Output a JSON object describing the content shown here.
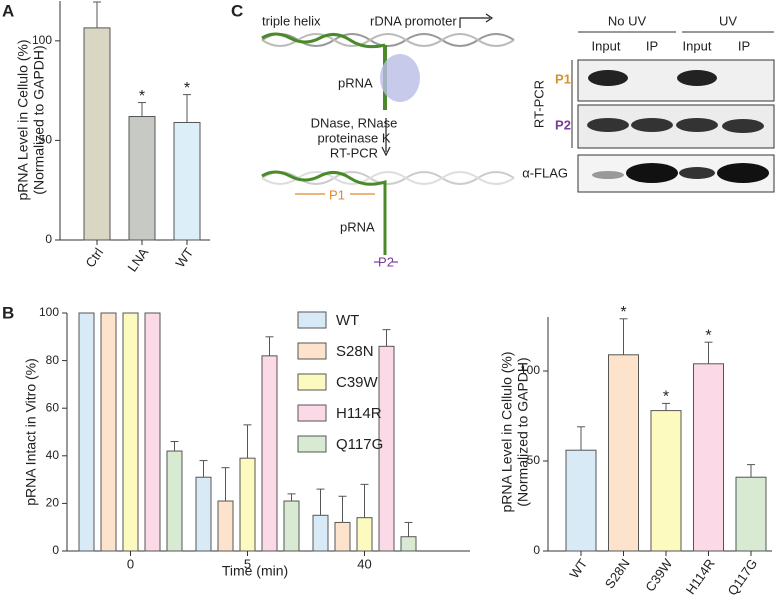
{
  "panel_labels": [
    "A",
    "B",
    "C"
  ],
  "chart_data": [
    {
      "type": "bar",
      "y_label": [
        "pRNA Level in Cellulo (%)",
        "(Normalized to GAPDH)"
      ],
      "categories": [
        "Ctrl",
        "LNA",
        "WT"
      ],
      "values": [
        106.5,
        62,
        59
      ],
      "errors": [
        13,
        7,
        14
      ],
      "annotations": [
        null,
        "*",
        "*"
      ],
      "colors": [
        "#d9d6c4",
        "#c7c9c5",
        "#dceef8"
      ],
      "ylim": [
        0,
        120
      ],
      "yticks": [
        0,
        50,
        100
      ]
    },
    {
      "type": "grouped-bar",
      "y_label": [
        "pRNA Intact in Vitro (%)"
      ],
      "x_label": "Time (min)",
      "categories": [
        "0",
        "5",
        "40"
      ],
      "series": [
        {
          "name": "WT",
          "color": "#d7eaf6",
          "values": [
            100,
            31,
            15
          ],
          "errors": [
            null,
            7,
            11
          ]
        },
        {
          "name": "S28N",
          "color": "#fde3cc",
          "values": [
            100,
            21,
            12
          ],
          "errors": [
            null,
            14,
            11
          ]
        },
        {
          "name": "C39W",
          "color": "#fdfac0",
          "values": [
            100,
            39,
            14
          ],
          "errors": [
            null,
            14,
            14
          ]
        },
        {
          "name": "H114R",
          "color": "#fbd9e6",
          "values": [
            100,
            82,
            86
          ],
          "errors": [
            null,
            8,
            7
          ]
        },
        {
          "name": "Q117G",
          "color": "#d9ead2",
          "values": [
            42,
            21,
            6
          ],
          "errors": [
            4,
            3,
            6
          ]
        }
      ],
      "ylim": [
        0,
        100
      ],
      "yticks": [
        0,
        20,
        40,
        60,
        80,
        100
      ],
      "legend": "top-right"
    },
    {
      "type": "bar",
      "y_label": [
        "pRNA Level in Cellulo (%)",
        "(Normalized to GAPDH)"
      ],
      "categories": [
        "WT",
        "S28N",
        "C39W",
        "H114R",
        "Q117G"
      ],
      "values": [
        56,
        109,
        78,
        104,
        41
      ],
      "errors": [
        13,
        20,
        4,
        12,
        7
      ],
      "annotations": [
        null,
        "*",
        "*",
        "*",
        null
      ],
      "colors": [
        "#d7eaf6",
        "#fde3cc",
        "#fdfac0",
        "#fbd9e6",
        "#d9ead2"
      ],
      "ylim": [
        0,
        130
      ],
      "yticks": [
        0,
        50,
        100
      ]
    }
  ],
  "diagram": {
    "triple_helix": "triple helix",
    "promoter": "rDNA promoter",
    "prna_top": "pRNA",
    "steps": [
      "DNase, RNase",
      "proteinase K",
      "RT-PCR"
    ],
    "p1": "P1",
    "prna_bottom": "pRNA",
    "p2": "P2"
  },
  "gel": {
    "conditions": [
      "No UV",
      "UV"
    ],
    "lanes": [
      "Input",
      "IP",
      "Input",
      "IP"
    ],
    "group_label": "RT-PCR",
    "rows": [
      "P1",
      "P2"
    ],
    "flag": "α-FLAG"
  }
}
